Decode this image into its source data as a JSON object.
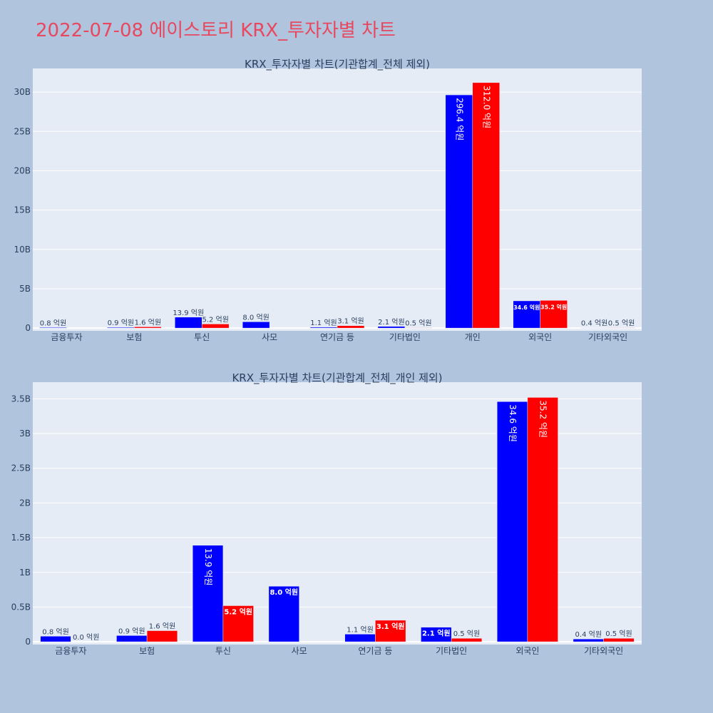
{
  "page": {
    "title": "2022-07-08 에이스토리 KRX_투자자별 차트",
    "colors": {
      "background": "#b0c4de",
      "plot_bg": "#e5ecf6",
      "title": "#e8485f",
      "buy": "#0000ff",
      "sell": "#ff0000"
    }
  },
  "chart_data": [
    {
      "type": "bar",
      "title": "KRX_투자자별 차트(기관합계_전체 제외)",
      "categories": [
        "금융투자",
        "보험",
        "투신",
        "사모",
        "연기금 등",
        "기타법인",
        "개인",
        "외국인",
        "기타외국인"
      ],
      "series": [
        {
          "color": "#0000ff",
          "values": [
            0.08,
            0.09,
            1.39,
            0.8,
            0.11,
            0.21,
            29.64,
            3.46,
            0.04
          ],
          "labels": [
            "0.8 억원",
            "0.9 억원",
            "13.9 억원",
            "8.0 억원",
            "1.1 억원",
            "2.1 억원",
            "296.4 억원",
            "34.6 억원",
            "0.4 억원"
          ]
        },
        {
          "color": "#ff0000",
          "values": [
            0.0,
            0.16,
            0.52,
            0.0,
            0.31,
            0.05,
            31.2,
            3.52,
            0.05
          ],
          "labels": [
            "",
            "1.6 억원",
            "5.2 억원",
            "",
            "3.1 억원",
            "0.5 억원",
            "312.0 억원",
            "35.2 억원",
            "0.5 억원"
          ]
        }
      ],
      "yticks": [
        "0",
        "5B",
        "10B",
        "15B",
        "20B",
        "25B",
        "30B"
      ],
      "ytick_values": [
        0,
        5,
        10,
        15,
        20,
        25,
        30
      ],
      "ylim": [
        -0.35,
        33.0
      ],
      "grid": true
    },
    {
      "type": "bar",
      "title": "KRX_투자자별 차트(기관합계_전체_개인 제외)",
      "categories": [
        "금융투자",
        "보험",
        "투신",
        "사모",
        "연기금 등",
        "기타법인",
        "외국인",
        "기타외국인"
      ],
      "series": [
        {
          "color": "#0000ff",
          "values": [
            0.08,
            0.09,
            1.39,
            0.8,
            0.11,
            0.21,
            3.46,
            0.04
          ],
          "labels": [
            "0.8 억원",
            "0.9 억원",
            "13.9 억원",
            "8.0 억원",
            "1.1 억원",
            "2.1 억원",
            "34.6 억원",
            "0.4 억원"
          ]
        },
        {
          "color": "#ff0000",
          "values": [
            0.0,
            0.16,
            0.52,
            0.0,
            0.31,
            0.05,
            3.52,
            0.05
          ],
          "labels": [
            "0.0 억원",
            "1.6 억원",
            "5.2 억원",
            "",
            "3.1 억원",
            "0.5 억원",
            "35.2 억원",
            "0.5 억원"
          ]
        }
      ],
      "yticks": [
        "0",
        "0.5B",
        "1B",
        "1.5B",
        "2B",
        "2.5B",
        "3B",
        "3.5B"
      ],
      "ytick_values": [
        0,
        0.5,
        1,
        1.5,
        2,
        2.5,
        3,
        3.5
      ],
      "ylim": [
        -0.04,
        3.74
      ],
      "grid": true
    }
  ]
}
